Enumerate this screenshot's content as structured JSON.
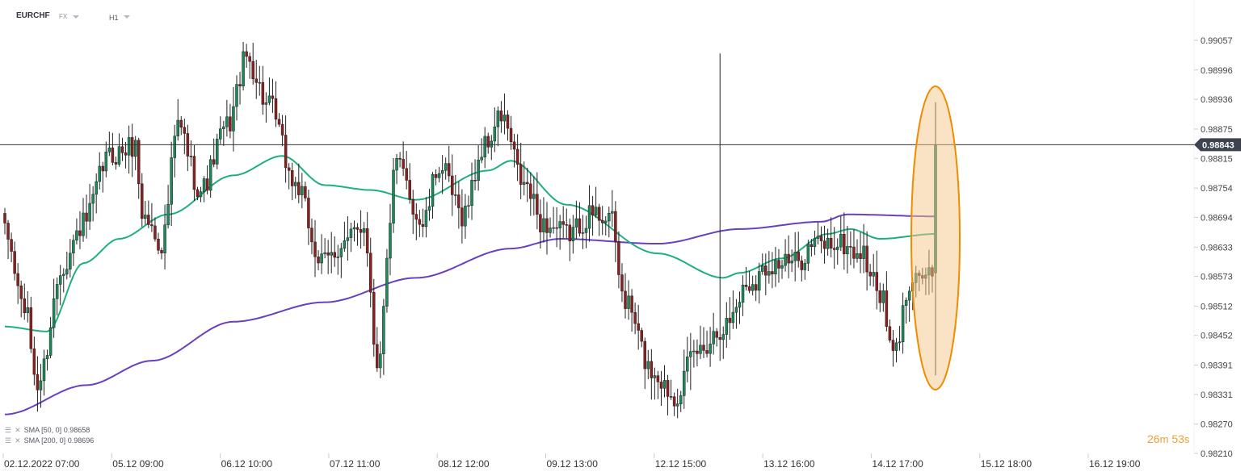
{
  "header": {
    "symbol": "EURCHF",
    "market": "FX",
    "timeframe": "H1"
  },
  "indicators": [
    {
      "label": "SMA",
      "params": "[50, 0]",
      "value": "0.98658",
      "color": "#1db07e"
    },
    {
      "label": "SMA",
      "params": "[200, 0]",
      "value": "0.98696",
      "color": "#6a3fbf"
    }
  ],
  "current_price": {
    "label": "0.98843",
    "value": 0.98843
  },
  "timer": {
    "min": "26",
    "min_unit": "m",
    "sec": "53",
    "sec_unit": "s"
  },
  "chart_data": {
    "type": "candlestick",
    "y_range": [
      0.9821,
      0.9909
    ],
    "y_ticks": [
      "0.99057",
      "0.98996",
      "0.98936",
      "0.98875",
      "0.98815",
      "0.98754",
      "0.98694",
      "0.98633",
      "0.98573",
      "0.98512",
      "0.98452",
      "0.98391",
      "0.98331",
      "0.98270",
      "0.98210"
    ],
    "x_ticks": [
      "02.12.2022  07:00",
      "05.12  09:00",
      "06.12  10:00",
      "07.12  11:00",
      "08.12  12:00",
      "09.12  13:00",
      "12.12  15:00",
      "13.12  16:00",
      "14.12  17:00",
      "15.12  18:00",
      "16.12  19:00"
    ],
    "colors": {
      "bull": "#1a8a5a",
      "bear": "#8e1f1f",
      "sma50": "#1db07e",
      "sma200": "#6a3fbf",
      "highlight": "#f08c00"
    },
    "sma50_anchors": [
      [
        0,
        0.9847
      ],
      [
        13,
        0.9846
      ],
      [
        24,
        0.986
      ],
      [
        35,
        0.9865
      ],
      [
        50,
        0.987
      ],
      [
        70,
        0.9878
      ],
      [
        85,
        0.9882
      ],
      [
        98,
        0.9876
      ],
      [
        112,
        0.9875
      ],
      [
        126,
        0.9873
      ],
      [
        148,
        0.9879
      ],
      [
        155,
        0.9881
      ],
      [
        172,
        0.9872
      ],
      [
        200,
        0.9862
      ],
      [
        220,
        0.9857
      ],
      [
        225,
        0.9858
      ],
      [
        238,
        0.9861
      ],
      [
        252,
        0.9866
      ],
      [
        259,
        0.9867
      ],
      [
        268,
        0.9865
      ],
      [
        285,
        0.9866
      ]
    ],
    "sma200_anchors": [
      [
        0,
        0.9829
      ],
      [
        25,
        0.9835
      ],
      [
        45,
        0.984
      ],
      [
        70,
        0.9848
      ],
      [
        98,
        0.9852
      ],
      [
        126,
        0.9857
      ],
      [
        155,
        0.9863
      ],
      [
        170,
        0.9865
      ],
      [
        200,
        0.9864
      ],
      [
        225,
        0.9867
      ],
      [
        250,
        0.98685
      ],
      [
        258,
        0.987
      ],
      [
        285,
        0.98696
      ]
    ],
    "candle_count": 286,
    "last_candle": {
      "open": 0.9858,
      "high": 0.9893,
      "low": 0.9837,
      "close": 0.98843
    }
  }
}
